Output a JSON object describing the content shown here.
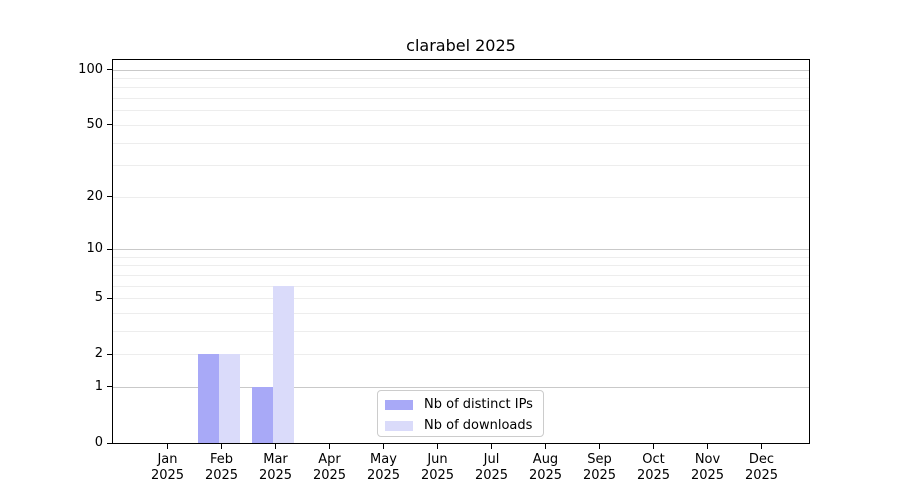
{
  "figure": {
    "background": "#ffffff",
    "text_color": "#000000",
    "spine_color": "#000000"
  },
  "chart_data": {
    "type": "bar",
    "title": "clarabel 2025",
    "categories": [
      "Jan",
      "Feb",
      "Mar",
      "Apr",
      "May",
      "Jun",
      "Jul",
      "Aug",
      "Sep",
      "Oct",
      "Nov",
      "Dec"
    ],
    "x_tick_year": "2025",
    "series": [
      {
        "name": "Nb of distinct IPs",
        "color": "#a8a9f7",
        "values": [
          0,
          2,
          1,
          0,
          0,
          0,
          0,
          0,
          0,
          0,
          0,
          0
        ]
      },
      {
        "name": "Nb of downloads",
        "color": "#dadbfa",
        "values": [
          0,
          2,
          6,
          0,
          0,
          0,
          0,
          0,
          0,
          0,
          0,
          0
        ]
      }
    ],
    "xlabel": "",
    "ylabel": "",
    "yscale": "log1p",
    "ylim": [
      0,
      113
    ],
    "yticks": [
      0,
      1,
      2,
      5,
      10,
      20,
      50,
      100
    ],
    "grid": {
      "major_lines": [
        1,
        10,
        100
      ],
      "minor_lines": [
        2,
        3,
        4,
        5,
        6,
        7,
        8,
        9,
        20,
        30,
        40,
        50,
        60,
        70,
        80,
        90
      ],
      "major_color": "#c9c9c9",
      "minor_color": "#ededed"
    },
    "legend": {
      "position": "lower-center"
    }
  }
}
